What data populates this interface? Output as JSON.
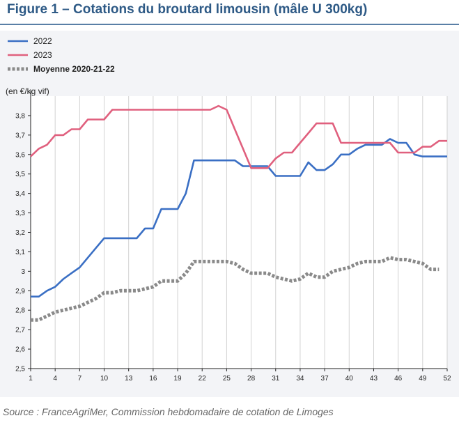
{
  "page": {
    "title": "Figure 1 – Cotations du broutard limousin (mâle U 300kg)",
    "source": "Source : FranceAgriMer, Commission hebdomadaire de cotation de Limoges"
  },
  "chart_data": {
    "type": "line",
    "ylabel": "(en €/kg vif)",
    "xlabel": "",
    "xlim": [
      1,
      52
    ],
    "ylim": [
      2.5,
      3.9
    ],
    "x_ticks": [
      1,
      4,
      7,
      10,
      13,
      16,
      19,
      22,
      25,
      28,
      31,
      34,
      37,
      40,
      43,
      46,
      49,
      52
    ],
    "y_ticks": [
      2.5,
      2.6,
      2.7,
      2.8,
      2.9,
      3.0,
      3.1,
      3.2,
      3.3,
      3.4,
      3.5,
      3.6,
      3.7,
      3.8
    ],
    "y_tick_labels": [
      "2,5",
      "2,6",
      "2,7",
      "2,8",
      "2,9",
      "3",
      "3,1",
      "3,2",
      "3,3",
      "3,4",
      "3,5",
      "3,6",
      "3,7",
      "3,8"
    ],
    "grid": "vertical",
    "legend_position": "top-left",
    "series": [
      {
        "name": "2022",
        "color": "#3a6fc4",
        "style": "solid",
        "x": [
          1,
          2,
          3,
          4,
          5,
          6,
          7,
          8,
          9,
          10,
          11,
          12,
          13,
          14,
          15,
          16,
          17,
          18,
          19,
          20,
          21,
          22,
          23,
          24,
          25,
          26,
          27,
          28,
          29,
          30,
          31,
          32,
          33,
          34,
          35,
          36,
          37,
          38,
          39,
          40,
          41,
          42,
          43,
          44,
          45,
          46,
          47,
          48,
          49,
          50,
          51,
          52
        ],
        "values": [
          2.87,
          2.87,
          2.9,
          2.92,
          2.96,
          2.99,
          3.02,
          3.07,
          3.12,
          3.17,
          3.17,
          3.17,
          3.17,
          3.17,
          3.22,
          3.22,
          3.32,
          3.32,
          3.32,
          3.4,
          3.57,
          3.57,
          3.57,
          3.57,
          3.57,
          3.57,
          3.54,
          3.54,
          3.54,
          3.54,
          3.49,
          3.49,
          3.49,
          3.49,
          3.56,
          3.52,
          3.52,
          3.55,
          3.6,
          3.6,
          3.63,
          3.65,
          3.65,
          3.65,
          3.68,
          3.66,
          3.66,
          3.6,
          3.59,
          3.59,
          3.59,
          3.59
        ]
      },
      {
        "name": "2023",
        "color": "#e0607e",
        "style": "solid",
        "x": [
          1,
          2,
          3,
          4,
          5,
          6,
          7,
          8,
          9,
          10,
          11,
          12,
          13,
          14,
          15,
          16,
          17,
          18,
          19,
          20,
          21,
          22,
          23,
          24,
          25,
          26,
          27,
          28,
          29,
          30,
          31,
          32,
          33,
          34,
          35,
          36,
          37,
          38,
          39,
          40,
          41,
          42,
          43,
          44,
          45,
          46,
          47,
          48,
          49,
          50,
          51,
          52
        ],
        "values": [
          3.59,
          3.63,
          3.65,
          3.7,
          3.7,
          3.73,
          3.73,
          3.78,
          3.78,
          3.78,
          3.83,
          3.83,
          3.83,
          3.83,
          3.83,
          3.83,
          3.83,
          3.83,
          3.83,
          3.83,
          3.83,
          3.83,
          3.83,
          3.85,
          3.83,
          3.73,
          3.63,
          3.53,
          3.53,
          3.53,
          3.58,
          3.61,
          3.61,
          3.66,
          3.71,
          3.76,
          3.76,
          3.76,
          3.66,
          3.66,
          3.66,
          3.66,
          3.66,
          3.66,
          3.66,
          3.61,
          3.61,
          3.61,
          3.64,
          3.64,
          3.67,
          3.67
        ]
      },
      {
        "name": "Moyenne 2020-21-22",
        "color": "#8a8a8a",
        "style": "dotted",
        "x": [
          1,
          2,
          3,
          4,
          5,
          6,
          7,
          8,
          9,
          10,
          11,
          12,
          13,
          14,
          15,
          16,
          17,
          18,
          19,
          20,
          21,
          22,
          23,
          24,
          25,
          26,
          27,
          28,
          29,
          30,
          31,
          32,
          33,
          34,
          35,
          36,
          37,
          38,
          39,
          40,
          41,
          42,
          43,
          44,
          45,
          46,
          47,
          48,
          49,
          50,
          51
        ],
        "values": [
          2.75,
          2.75,
          2.77,
          2.79,
          2.8,
          2.81,
          2.82,
          2.84,
          2.86,
          2.89,
          2.89,
          2.9,
          2.9,
          2.9,
          2.91,
          2.92,
          2.95,
          2.95,
          2.95,
          2.99,
          3.05,
          3.05,
          3.05,
          3.05,
          3.05,
          3.04,
          3.01,
          2.99,
          2.99,
          2.99,
          2.97,
          2.96,
          2.95,
          2.96,
          2.99,
          2.97,
          2.97,
          3.0,
          3.01,
          3.02,
          3.04,
          3.05,
          3.05,
          3.05,
          3.07,
          3.06,
          3.06,
          3.05,
          3.04,
          3.01,
          3.01
        ]
      }
    ]
  }
}
